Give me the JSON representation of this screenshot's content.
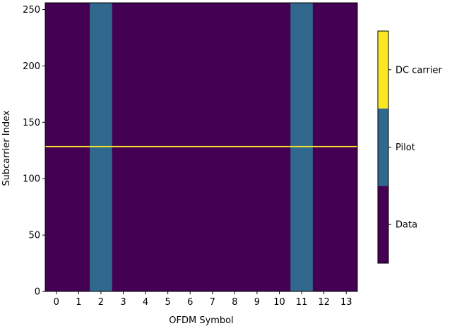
{
  "chart_data": {
    "type": "heatmap",
    "title": "",
    "xlabel": "OFDM Symbol",
    "ylabel": "Subcarrier Index",
    "x_ticks": [
      "0",
      "1",
      "2",
      "3",
      "4",
      "5",
      "6",
      "7",
      "8",
      "9",
      "10",
      "11",
      "12",
      "13"
    ],
    "y_ticks": [
      "0",
      "50",
      "100",
      "150",
      "200",
      "250"
    ],
    "xlim": [
      -0.5,
      13.5
    ],
    "ylim": [
      0,
      256
    ],
    "num_symbols": 14,
    "num_subcarriers": 256,
    "pilot_symbols": [
      2,
      11
    ],
    "dc_subcarrier": 128,
    "categories": [
      {
        "label": "Data",
        "value": 0,
        "color": "#440154"
      },
      {
        "label": "Pilot",
        "value": 1,
        "color": "#31688e"
      },
      {
        "label": "DC carrier",
        "value": 2,
        "color": "#fde725"
      }
    ],
    "grid": false,
    "legend": "colorbar-right"
  }
}
